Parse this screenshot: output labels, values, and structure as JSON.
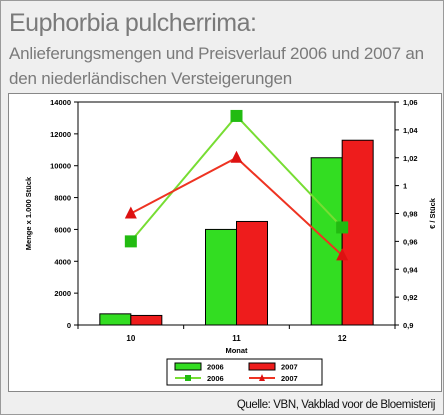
{
  "header": {
    "title": "Euphorbia pulcherrima:",
    "subtitle": "Anlieferungsmengen und Preisverlauf 2006 und 2007 an den niederländischen Versteigerungen"
  },
  "source": "Quelle: VBN, Vakblad voor de Bloemisterij",
  "colors": {
    "bar_2006": "#33dd22",
    "bar_2007": "#ee1c1c",
    "line_2006": "#77dd33",
    "line_2007": "#ee3322"
  },
  "chart_data": {
    "type": "bar+line",
    "categories": [
      "10",
      "11",
      "12"
    ],
    "xlabel": "Monat",
    "ylabel_left": "Menge x 1.000 Stück",
    "ylabel_right": "€ / Stück",
    "ylim_left": [
      0,
      14000
    ],
    "yticks_left": [
      "0",
      "2000",
      "4000",
      "6000",
      "8000",
      "10000",
      "12000",
      "14000"
    ],
    "ylim_right": [
      0.9,
      1.06
    ],
    "yticks_right": [
      "0,9",
      "0,92",
      "0,94",
      "0,96",
      "0,98",
      "1",
      "1,02",
      "1,04",
      "1,06"
    ],
    "bar_series": [
      {
        "name": "2006",
        "values": [
          700,
          6000,
          10500
        ]
      },
      {
        "name": "2007",
        "values": [
          600,
          6500,
          11600
        ]
      }
    ],
    "line_series": [
      {
        "name": "2006",
        "values": [
          0.96,
          1.05,
          0.97
        ],
        "marker": "square"
      },
      {
        "name": "2007",
        "values": [
          0.98,
          1.02,
          0.95
        ],
        "marker": "triangle"
      }
    ],
    "grid": false,
    "legend": "bottom"
  }
}
